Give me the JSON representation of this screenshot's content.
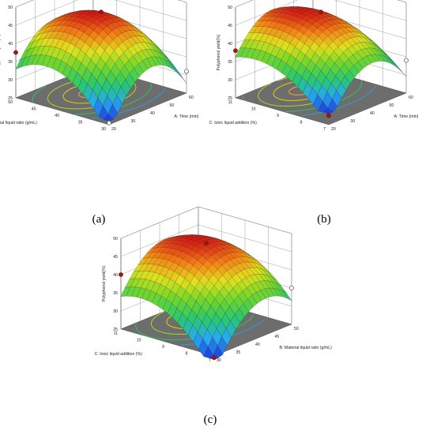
{
  "chart_data": [
    {
      "type": "surface",
      "panel_label": "(a)",
      "x": {
        "label": "A: Time (min)",
        "ticks": [
          "20",
          "30",
          "40",
          "50",
          "60"
        ]
      },
      "y": {
        "label": "B: Material liquid ratio (g/mL)",
        "ticks": [
          "30",
          "35",
          "40",
          "45",
          "50"
        ]
      },
      "z": {
        "label": "Polyphenol yield(%)",
        "ticks": [
          "25",
          "30",
          "35",
          "40",
          "45",
          "50"
        ],
        "zlim": [
          25,
          50
        ]
      },
      "surface": {
        "x_range": [
          20,
          60
        ],
        "y_range": [
          30,
          50
        ],
        "peak_x": 40,
        "peak_y": 42,
        "max": 47,
        "min": 26
      },
      "design_points": [
        {
          "x": 40,
          "y": 40,
          "z": 48,
          "color": "#cc0000"
        },
        {
          "x": 20,
          "y": 50,
          "z": 37.5,
          "color": "#cc0000"
        },
        {
          "x": 60,
          "y": 30,
          "z": 31,
          "color": "#ffffff"
        },
        {
          "x": 20,
          "y": 30,
          "z": 25.5,
          "color": "#ffffff"
        }
      ]
    },
    {
      "type": "surface",
      "panel_label": "(b)",
      "x": {
        "label": "A: Time (min)",
        "ticks": [
          "20",
          "30",
          "40",
          "50",
          "60"
        ]
      },
      "y": {
        "label": "C: Ionic liquid addition (%)",
        "ticks": [
          "7",
          "8",
          "9",
          "10",
          "11"
        ]
      },
      "z": {
        "label": "Polyphenol yield(%)",
        "ticks": [
          "25",
          "30",
          "35",
          "40",
          "45",
          "50"
        ],
        "zlim": [
          25,
          50
        ]
      },
      "surface": {
        "x_range": [
          20,
          60
        ],
        "y_range": [
          7,
          11
        ],
        "peak_x": 40,
        "peak_y": 9.8,
        "max": 47,
        "min": 28
      },
      "design_points": [
        {
          "x": 40,
          "y": 9,
          "z": 48,
          "color": "#cc0000"
        },
        {
          "x": 20,
          "y": 11,
          "z": 38,
          "color": "#cc0000"
        },
        {
          "x": 60,
          "y": 7,
          "z": 34,
          "color": "#ffffff"
        },
        {
          "x": 20,
          "y": 7,
          "z": 27.5,
          "color": "#cc0000"
        }
      ]
    },
    {
      "type": "surface",
      "panel_label": "(c)",
      "x": {
        "label": "B: Material liquid ratio (g/mL)",
        "ticks": [
          "30",
          "35",
          "40",
          "45",
          "50"
        ]
      },
      "y": {
        "label": "C: Ionic liquid addition (%)",
        "ticks": [
          "7",
          "8",
          "9",
          "10",
          "11"
        ]
      },
      "z": {
        "label": "Polyphenol yield(%)",
        "ticks": [
          "25",
          "30",
          "35",
          "40",
          "45",
          "50"
        ],
        "zlim": [
          25,
          50
        ]
      },
      "surface": {
        "x_range": [
          30,
          50
        ],
        "y_range": [
          7,
          11
        ],
        "peak_x": 42,
        "peak_y": 9.8,
        "max": 47,
        "min": 24
      },
      "design_points": [
        {
          "x": 40,
          "y": 9,
          "z": 48,
          "color": "#cc0000"
        },
        {
          "x": 30,
          "y": 11,
          "z": 40,
          "color": "#cc0000"
        },
        {
          "x": 50,
          "y": 7,
          "z": 35,
          "color": "#ffffff"
        },
        {
          "x": 30,
          "y": 7,
          "z": 24.5,
          "color": "#cc0000"
        }
      ]
    }
  ]
}
